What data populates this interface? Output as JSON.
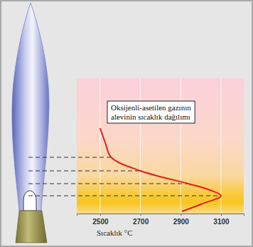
{
  "chart_data": {
    "type": "line",
    "title": "Oksijenli-asetilen gazının alevinin sıcaklık dağılımı",
    "x_label": "Sıcaklık °C",
    "x": [
      2907,
      3000,
      3100,
      3045,
      2936,
      2700,
      2555,
      2525,
      2500
    ],
    "values": [
      3,
      13,
      25,
      33,
      42,
      60,
      79,
      100,
      120
    ],
    "color": "#e0201e",
    "xlim": [
      2384,
      3213
    ],
    "xticks": [
      2500,
      2700,
      2900,
      3100
    ],
    "ylim": [
      0,
      190
    ],
    "yticks": [],
    "hlines": [
      25,
      42,
      60,
      79
    ],
    "grid": true,
    "tick_labels": "x"
  }
}
